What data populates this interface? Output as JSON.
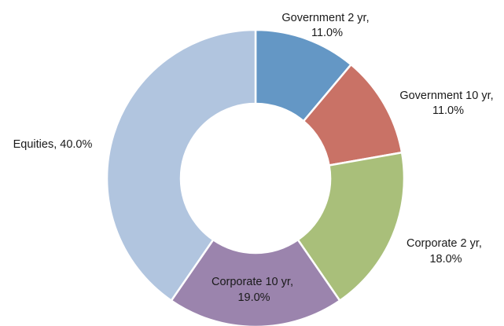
{
  "chart_data": {
    "type": "pie",
    "variant": "donut",
    "title": "",
    "slices": [
      {
        "name": "Government 2 yr",
        "value": 11.0,
        "label": "11.0%",
        "color": "#6497c5"
      },
      {
        "name": "Government 10 yr",
        "value": 11.0,
        "label": "11.0%",
        "color": "#c97266"
      },
      {
        "name": "Corporate 2 yr",
        "value": 18.0,
        "label": "18.0%",
        "color": "#a9bf7a"
      },
      {
        "name": "Corporate 10 yr",
        "value": 19.0,
        "label": "19.0%",
        "color": "#9b84ad"
      },
      {
        "name": "Equities",
        "value": 40.0,
        "label": "40.0%",
        "color": "#b1c5df"
      }
    ],
    "legend": "none",
    "data_labels": "outside"
  }
}
